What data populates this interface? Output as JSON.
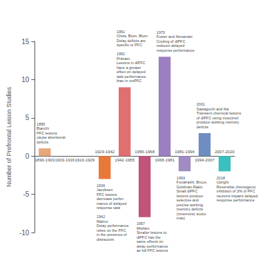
{
  "chart_data": {
    "type": "bar",
    "ylabel": "Number of Prefrontal Leison Studies",
    "categories": [
      "1890-1903",
      "1903-1916",
      "1916-1929",
      "1929-1942",
      "1942-1955",
      "1955-1968",
      "1968-1981",
      "1981-1994",
      "1994-2007",
      "2007-2020"
    ],
    "values": [
      1,
      0,
      0,
      -3,
      9,
      -8,
      13,
      -2,
      3,
      -2
    ],
    "colors": [
      "#E8A87C",
      "#E8A87C",
      "#E8A87C",
      "#E8783A",
      "#E07070",
      "#C0547A",
      "#9B7FC0",
      "#A08CC0",
      "#6F8DC0",
      "#3BBFBF"
    ],
    "ylim": [
      -10,
      15
    ],
    "yticks": [
      -10,
      -5,
      0,
      5,
      10,
      15
    ],
    "grid": false,
    "annotations": [
      {
        "category": "1890-1903",
        "text": "1895\nBianchi\nPFC lesions\ncause attentional\ndeficits"
      },
      {
        "category": "1929-1942",
        "text": "1936\nJacobsen\nPFC lesions\ndecrease perfor-\nmance of delayed\nresponse task\n\n1942\nMalmo\nDelay performance\nrelies on the PFC\nin the presence of\ndistractors"
      },
      {
        "category": "1942-1955",
        "text": "1951\nChow, Blum, Blum\nDelay deficits are\nspecific to PFC\n\n1952\nPribram\nLesions in dlPFC\nhave a greater\neffect on delayed\ntask performance\nthan in vmPFC"
      },
      {
        "category": "1955-1968",
        "text": "1957\nMishkin\nSmaller lesions to\ndlPFC has the\nsame effects on\ndelay performance\nas full PFC lesions"
      },
      {
        "category": "1968-1981",
        "text": "1970\nFuster and Alexander\nCooling of dlPFC\nreduces delayed\nresponse performance"
      },
      {
        "category": "1981-1994",
        "text": "1993\nFunahashi, Bruce,\nGoldman-Rakic\nSmall dlPFC\nlesions produce\nselective and\nprecise working\nmemory deficits\n(mnemonic scoto-\nmas)"
      },
      {
        "category": "1994-2007",
        "text": "2001\nSawaguchi and Iba\nTransient chemical lesions\nof dlPFC using muscimol\nproduce working memory\ndeficits"
      },
      {
        "category": "2007-2020",
        "text": "2018\nUpright\nReversible chemogenic\ninhibition of 3% of PFC\nneurons impairs delayed\nresponse performance"
      }
    ]
  }
}
